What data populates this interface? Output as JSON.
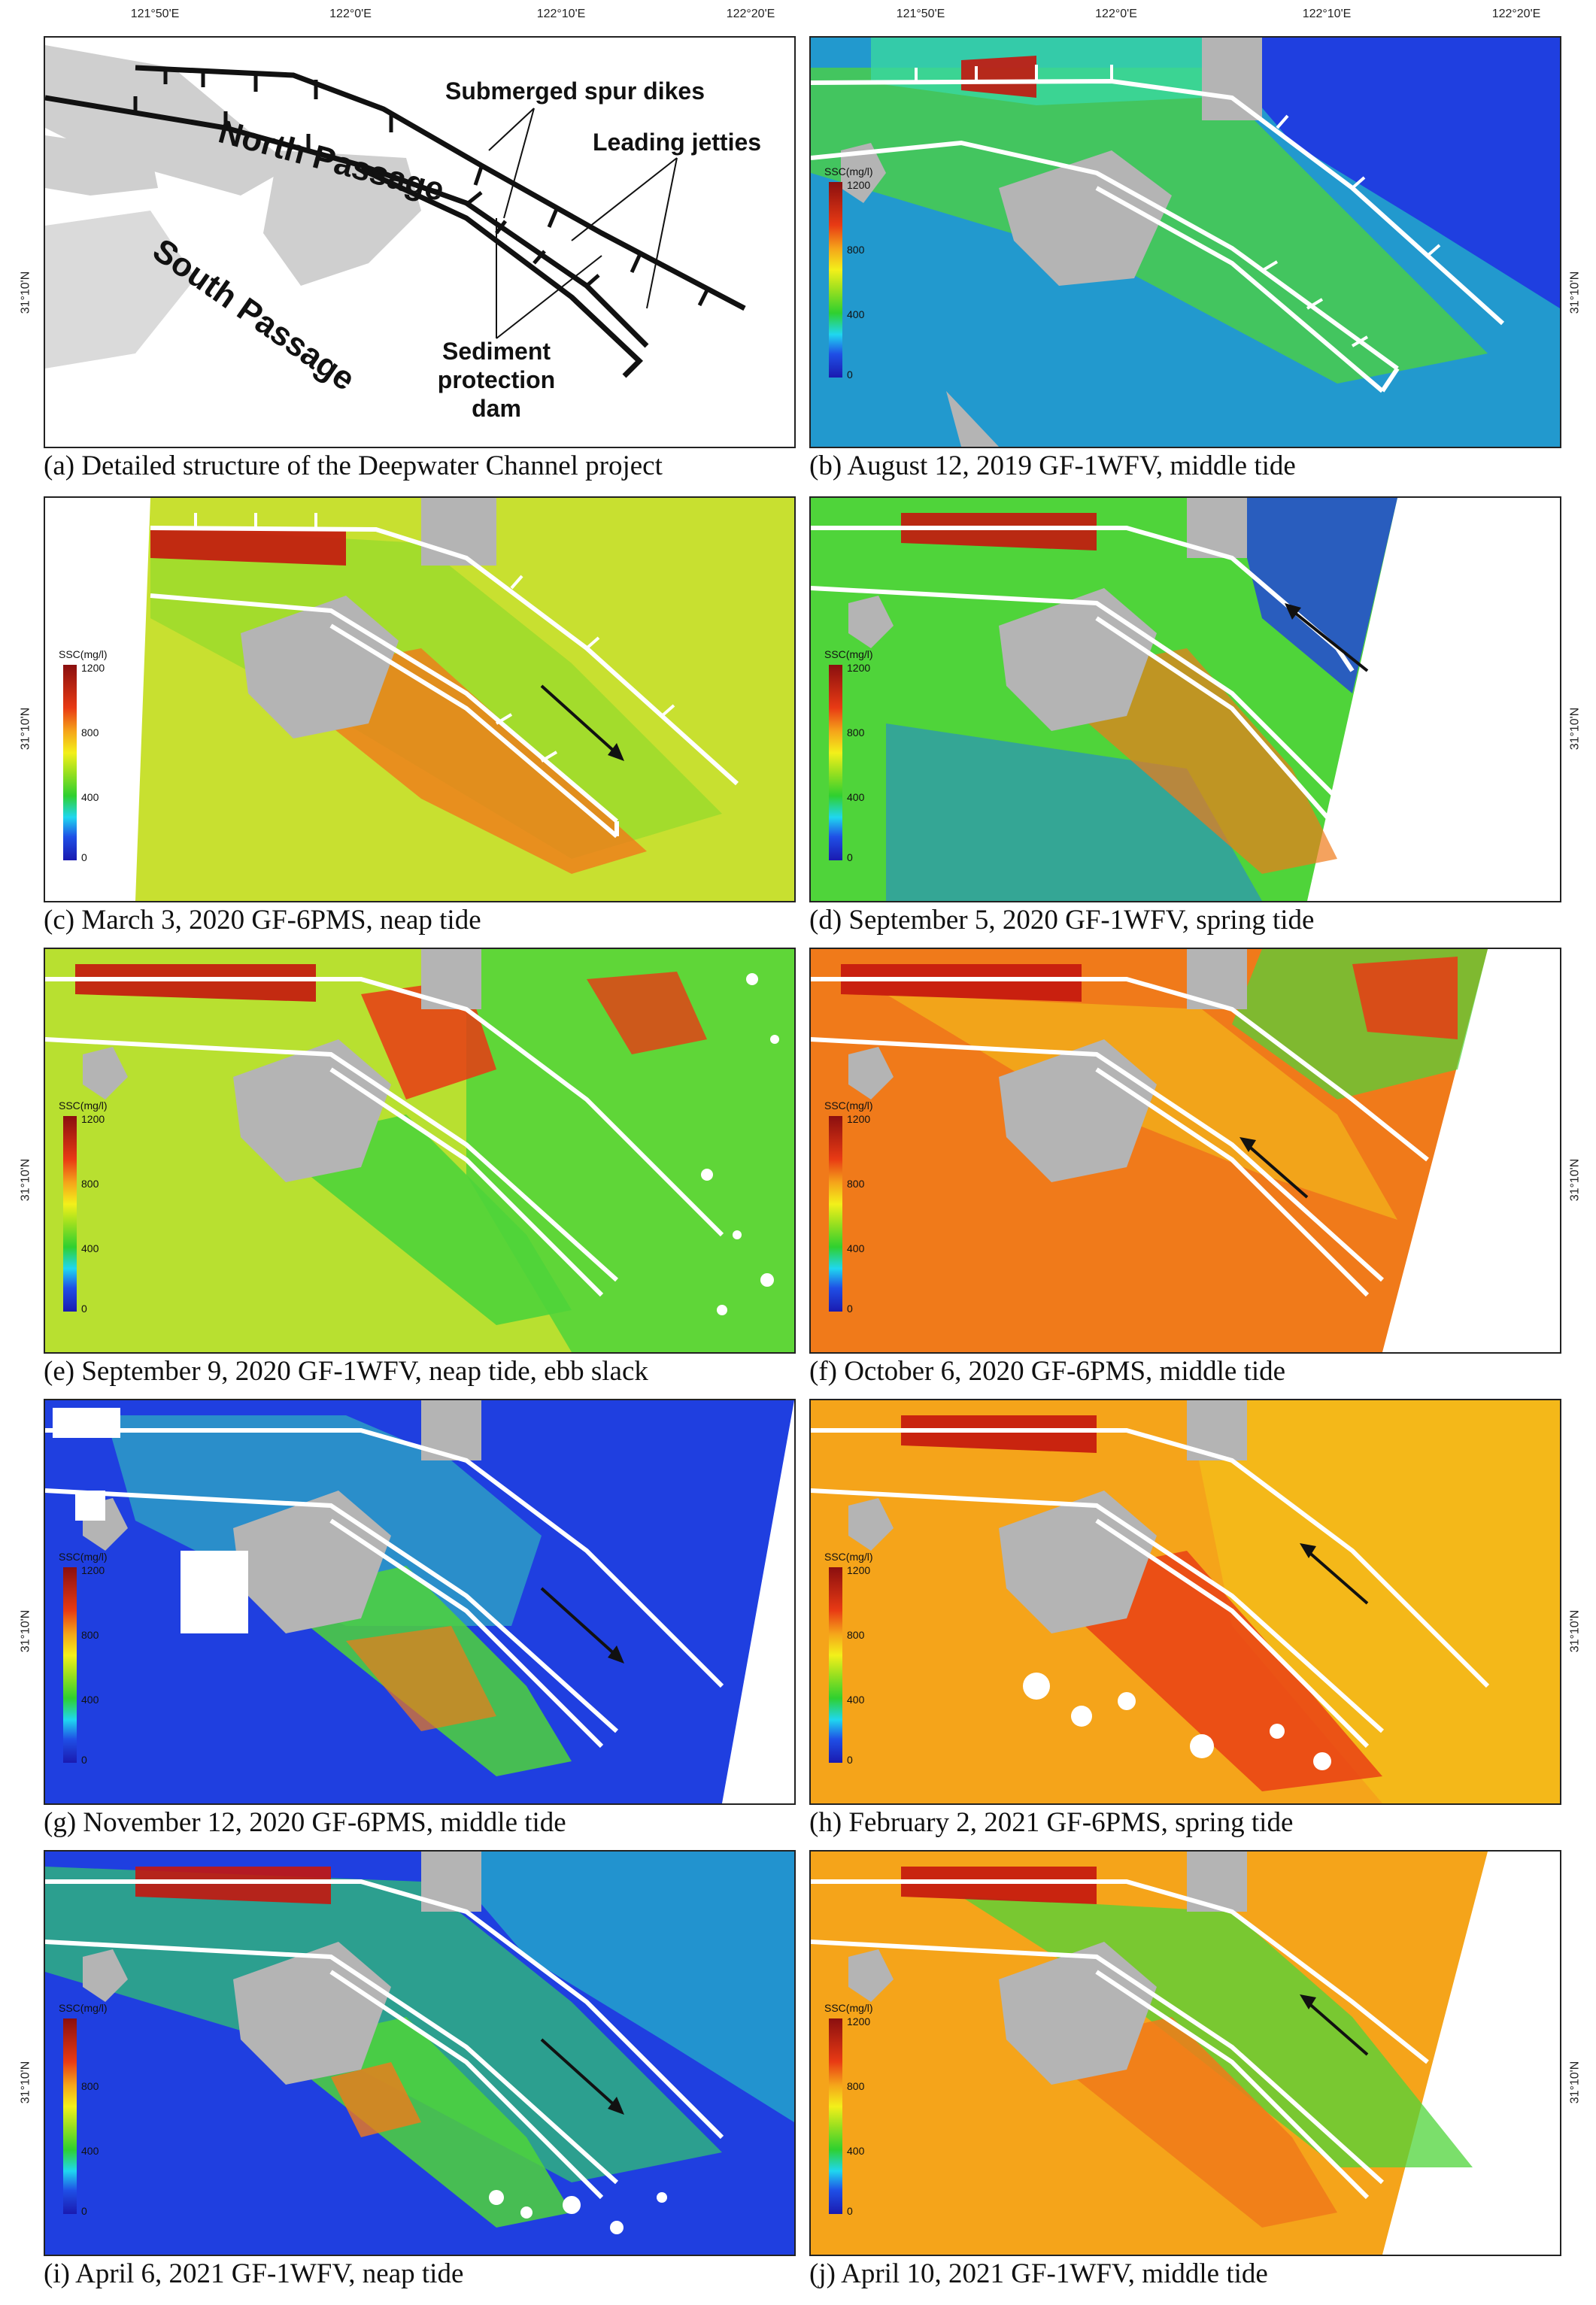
{
  "axis": {
    "lon_ticks": [
      "121°50'E",
      "122°0'E",
      "122°10'E",
      "122°20'E"
    ],
    "lat_label": "31°10'N"
  },
  "legend": {
    "title": "SSC(mg/l)",
    "labels": [
      "1200",
      "800",
      "400",
      "0"
    ]
  },
  "panel_a": {
    "labels": {
      "north": "North Passage",
      "south": "South Passage",
      "spur": "Submerged spur dikes",
      "jetties": "Leading jetties",
      "dam_1": "Sediment",
      "dam_2": "protection",
      "dam_3": "dam"
    }
  },
  "panels": [
    {
      "id": "a",
      "caption": "(a) Detailed structure of the Deepwater Channel project"
    },
    {
      "id": "b",
      "caption": "(b) August 12, 2019 GF-1WFV, middle tide"
    },
    {
      "id": "c",
      "caption": "(c) March 3, 2020 GF-6PMS, neap tide"
    },
    {
      "id": "d",
      "caption": "(d) September 5, 2020 GF-1WFV, spring tide"
    },
    {
      "id": "e",
      "caption": "(e) September 9, 2020 GF-1WFV, neap tide, ebb slack"
    },
    {
      "id": "f",
      "caption": "(f) October 6, 2020 GF-6PMS, middle tide"
    },
    {
      "id": "g",
      "caption": "(g) November 12, 2020 GF-6PMS, middle tide"
    },
    {
      "id": "h",
      "caption": "(h) February 2, 2021 GF-6PMS, spring tide"
    },
    {
      "id": "i",
      "caption": "(i) April 6, 2021 GF-1WFV, neap tide"
    },
    {
      "id": "j",
      "caption": "(j) April 10, 2021 GF-1WFV, middle tide"
    }
  ],
  "colors": {
    "land": "#b4b4b4",
    "structures": "#ffffff",
    "low_ssc": "#1f3fe0",
    "mid_ssc": "#5bd82a",
    "high_ssc": "#f07a1a",
    "very_high_ssc": "#c4160e"
  },
  "symbols": {
    "arrow": "flow-direction-arrow-icon"
  }
}
